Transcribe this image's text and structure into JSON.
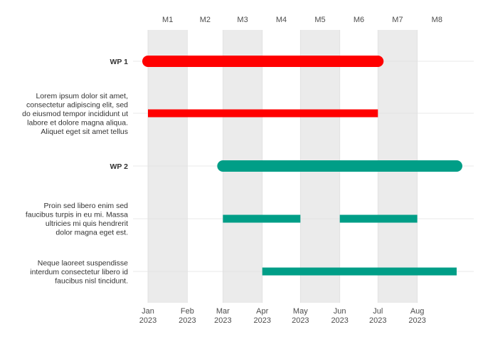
{
  "chart_data": {
    "type": "gantt",
    "title": "",
    "xlabel": "",
    "ylabel": "",
    "x_axis": {
      "type": "date",
      "range": [
        "2023-01-01",
        "2023-08-31"
      ],
      "ticks": [
        {
          "date": "2023-01-01",
          "label": [
            "Jan",
            "2023"
          ]
        },
        {
          "date": "2023-02-01",
          "label": [
            "Feb",
            "2023"
          ]
        },
        {
          "date": "2023-03-01",
          "label": [
            "Mar",
            "2023"
          ]
        },
        {
          "date": "2023-04-01",
          "label": [
            "Apr",
            "2023"
          ]
        },
        {
          "date": "2023-05-01",
          "label": [
            "May",
            "2023"
          ]
        },
        {
          "date": "2023-06-01",
          "label": [
            "Jun",
            "2023"
          ]
        },
        {
          "date": "2023-07-01",
          "label": [
            "Jul",
            "2023"
          ]
        },
        {
          "date": "2023-08-01",
          "label": [
            "Aug",
            "2023"
          ]
        }
      ]
    },
    "top_axis": {
      "labels": [
        "M1",
        "M2",
        "M3",
        "M4",
        "M5",
        "M6",
        "M7",
        "M8"
      ],
      "shaded_months": [
        "M1",
        "M3",
        "M5",
        "M7"
      ]
    },
    "grid": true,
    "rows": [
      {
        "label": "WP 1",
        "bold": true,
        "kind": "work-package",
        "color": "#ff0000",
        "bars": [
          {
            "start": "2023-01-01",
            "end": "2023-06-30"
          }
        ]
      },
      {
        "label": "Lorem ipsum dolor sit amet, consectetur adipiscing elit, sed do eiusmod tempor incididunt ut labore et dolore magna aliqua. Aliquet eget sit amet tellus",
        "label_lines": [
          "Lorem ipsum dolor sit amet,",
          "consectetur adipiscing elit, sed",
          "do eiusmod tempor incididunt ut",
          "labore et dolore magna aliqua.",
          "Aliquet eget sit amet tellus"
        ],
        "bold": false,
        "kind": "activity",
        "color": "#ff0000",
        "bars": [
          {
            "start": "2023-01-01",
            "end": "2023-06-30"
          }
        ]
      },
      {
        "label": "WP 2",
        "bold": true,
        "kind": "work-package",
        "color": "#009e87",
        "bars": [
          {
            "start": "2023-03-01",
            "end": "2023-08-31"
          }
        ]
      },
      {
        "label": "Proin sed libero enim sed faucibus turpis in eu mi. Massa ultricies mi quis hendrerit dolor magna eget est.",
        "label_lines": [
          "Proin sed libero enim sed",
          "faucibus turpis in eu mi. Massa",
          "ultricies mi quis hendrerit",
          "dolor magna eget est."
        ],
        "bold": false,
        "kind": "activity",
        "color": "#009e87",
        "bars": [
          {
            "start": "2023-03-01",
            "end": "2023-04-30"
          },
          {
            "start": "2023-06-01",
            "end": "2023-07-31"
          }
        ]
      },
      {
        "label": "Neque laoreet suspendisse interdum consectetur libero id faucibus nisl tincidunt.",
        "label_lines": [
          "Neque laoreet suspendisse",
          "interdum consectetur libero id",
          "faucibus nisl tincidunt."
        ],
        "bold": false,
        "kind": "activity",
        "color": "#009e87",
        "bars": [
          {
            "start": "2023-04-01",
            "end": "2023-08-31"
          }
        ]
      }
    ]
  }
}
